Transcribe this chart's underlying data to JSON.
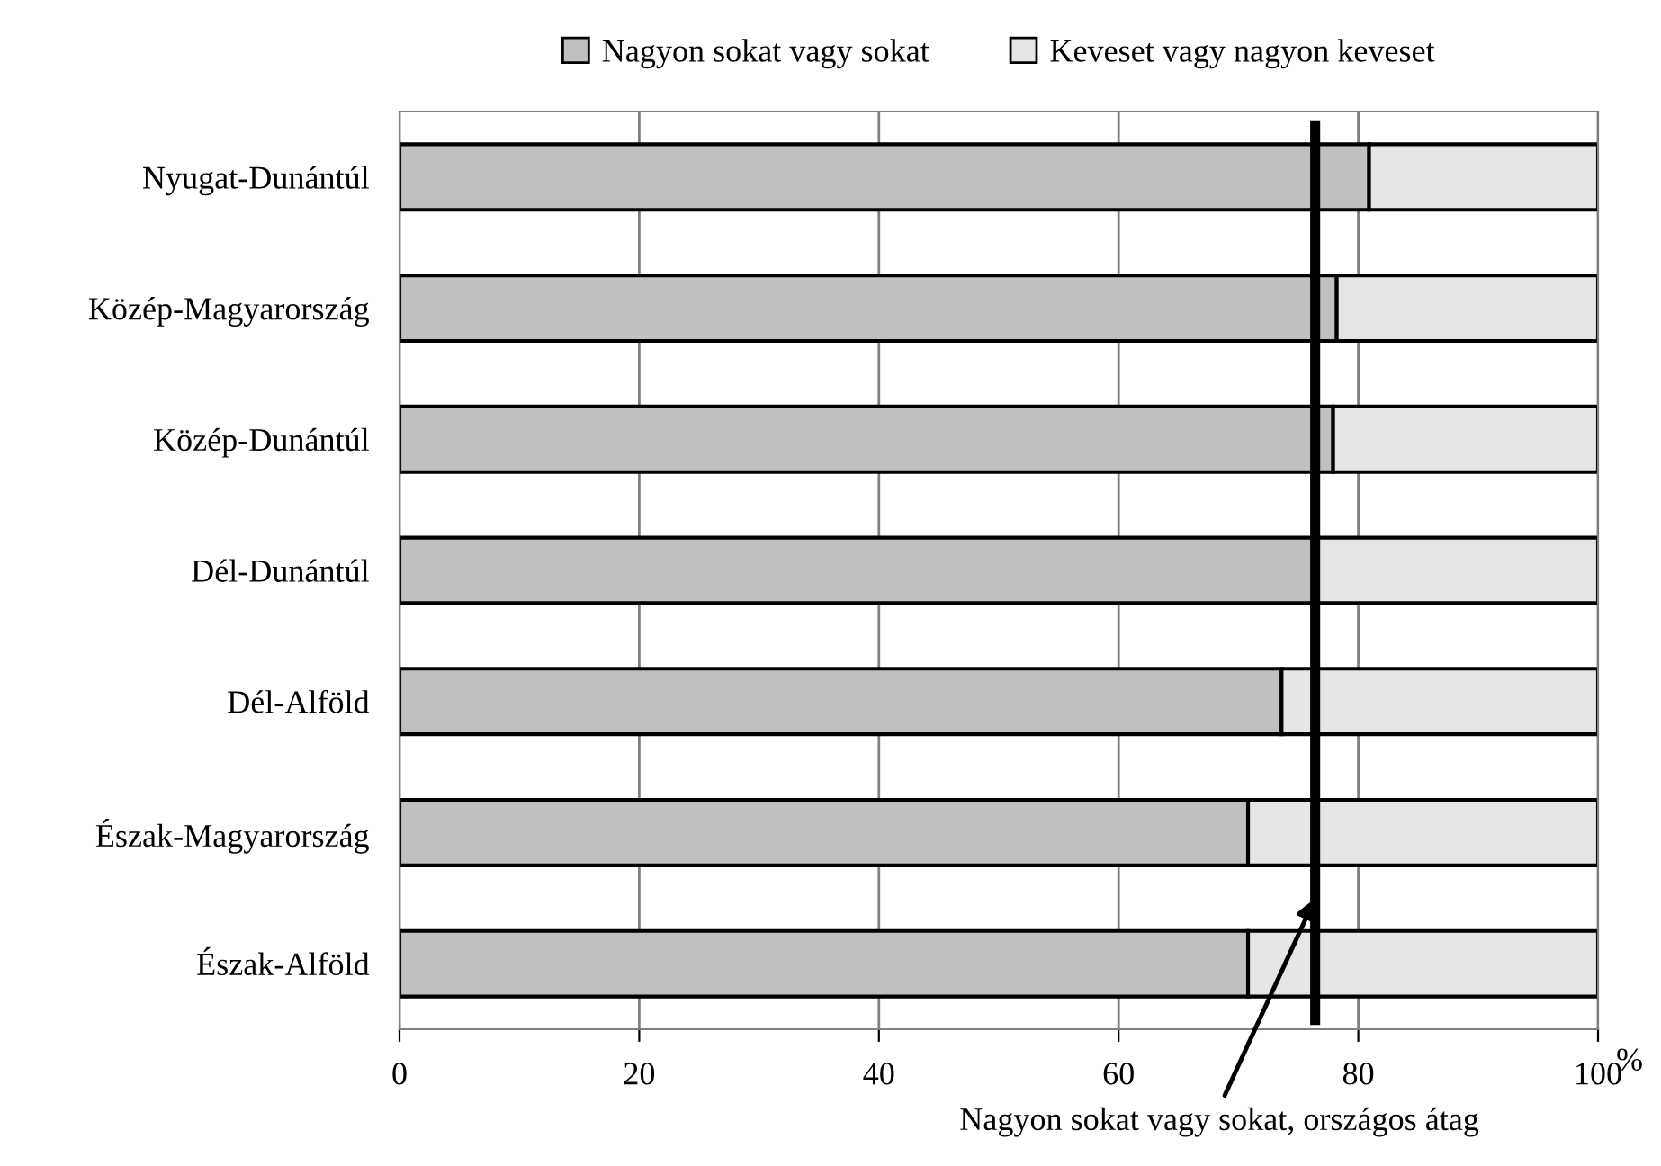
{
  "chart_data": {
    "type": "bar",
    "orientation": "horizontal",
    "stacked": true,
    "categories": [
      "Nyugat-Dunántúl",
      "Közép-Magyarország",
      "Közép-Dunántúl",
      "Dél-Dunántúl",
      "Dél-Alföld",
      "Észak-Magyarország",
      "Észak-Alföld"
    ],
    "series": [
      {
        "name": "Nagyon sokat vagy sokat",
        "color": "#c0c0c0",
        "values": [
          80.9,
          78.2,
          77.9,
          76.6,
          73.6,
          70.8,
          70.8
        ]
      },
      {
        "name": "Keveset vagy nagyon keveset",
        "color": "#e6e6e6",
        "values": [
          19.1,
          21.8,
          22.1,
          23.4,
          26.4,
          29.2,
          29.2
        ]
      }
    ],
    "xlim": [
      0,
      100
    ],
    "xticks": [
      0,
      20,
      40,
      60,
      80,
      100
    ],
    "xlabel": "%",
    "grid": "x",
    "legend": "top",
    "ref_lines": [
      {
        "axis": "x",
        "value": 76.4,
        "label": "Nagyon sokat vagy sokat, országos átag",
        "color": "#000000"
      }
    ]
  }
}
